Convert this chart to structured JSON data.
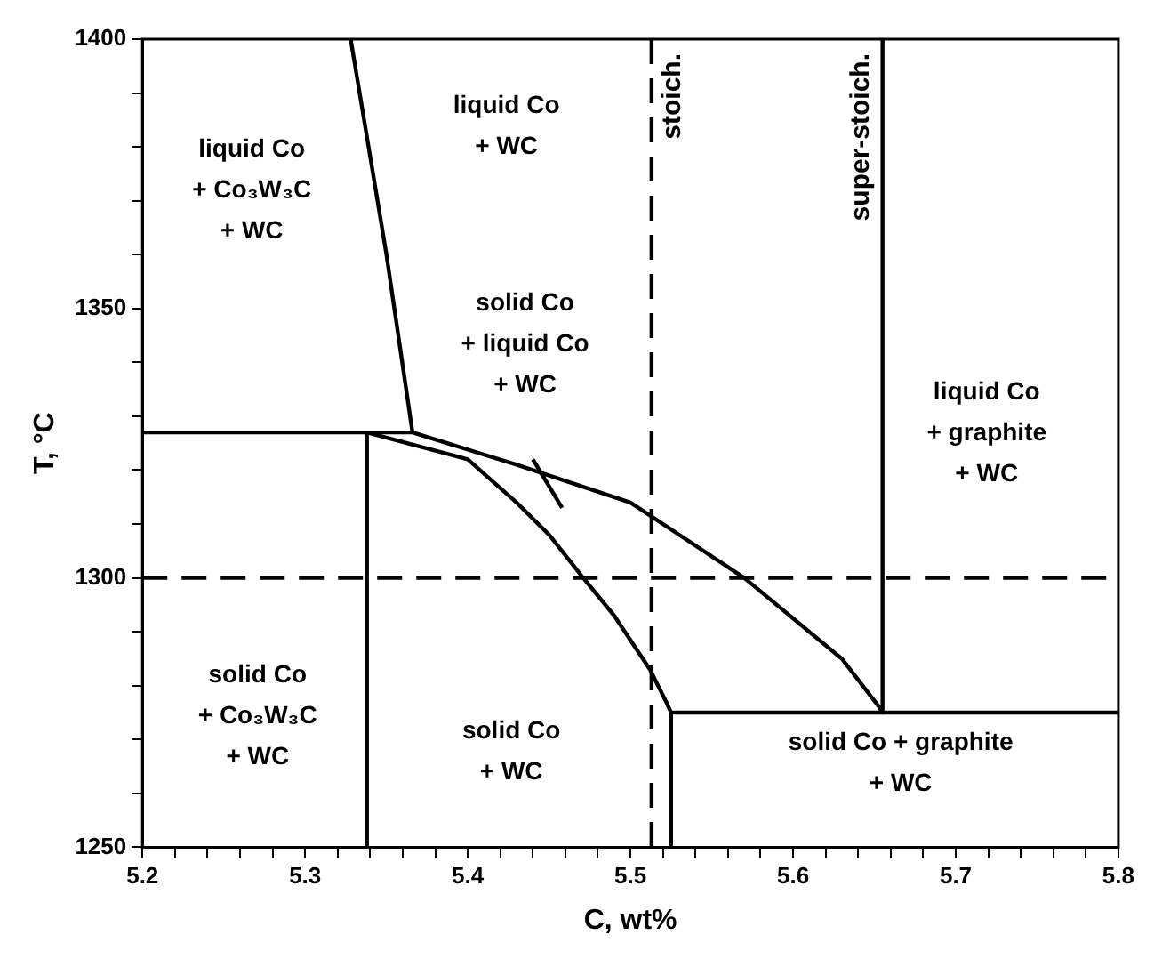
{
  "chart_data": {
    "type": "line",
    "xlabel": "C, wt%",
    "ylabel": "T, °C",
    "xlim": [
      5.2,
      5.8
    ],
    "ylim": [
      1250,
      1400
    ],
    "xticks": [
      5.2,
      {
        "value": 5.22,
        "label": null
      },
      {
        "value": 5.24,
        "label": null
      },
      {
        "value": 5.26,
        "label": null
      },
      {
        "value": 5.28,
        "label": null
      },
      5.3,
      {
        "value": 5.32,
        "label": null
      },
      {
        "value": 5.34,
        "label": null
      },
      {
        "value": 5.36,
        "label": null
      },
      {
        "value": 5.38,
        "label": null
      },
      5.4,
      {
        "value": 5.42,
        "label": null
      },
      {
        "value": 5.44,
        "label": null
      },
      {
        "value": 5.46,
        "label": null
      },
      {
        "value": 5.48,
        "label": null
      },
      5.5,
      {
        "value": 5.52,
        "label": null
      },
      {
        "value": 5.54,
        "label": null
      },
      {
        "value": 5.56,
        "label": null
      },
      {
        "value": 5.58,
        "label": null
      },
      5.6,
      {
        "value": 5.62,
        "label": null
      },
      {
        "value": 5.64,
        "label": null
      },
      {
        "value": 5.66,
        "label": null
      },
      {
        "value": 5.68,
        "label": null
      },
      5.7,
      {
        "value": 5.72,
        "label": null
      },
      {
        "value": 5.74,
        "label": null
      },
      {
        "value": 5.76,
        "label": null
      },
      {
        "value": 5.78,
        "label": null
      },
      5.8
    ],
    "yticks": [
      1250,
      {
        "value": 1260,
        "label": null
      },
      {
        "value": 1270,
        "label": null
      },
      {
        "value": 1280,
        "label": null
      },
      {
        "value": 1290,
        "label": null
      },
      1300,
      {
        "value": 1310,
        "label": null
      },
      {
        "value": 1320,
        "label": null
      },
      {
        "value": 1330,
        "label": null
      },
      {
        "value": 1340,
        "label": null
      },
      1350,
      {
        "value": 1360,
        "label": null
      },
      {
        "value": 1370,
        "label": null
      },
      {
        "value": 1380,
        "label": null
      },
      {
        "value": 1390,
        "label": null
      },
      1400
    ],
    "grid": false,
    "legend": false,
    "marker": "none",
    "line_style": "solid",
    "series": [
      {
        "name": "super-stoich.",
        "color": "#000000",
        "x": [
          5.2,
          5.366,
          5.43,
          5.5,
          5.57,
          5.63,
          5.653,
          5.655,
          5.655
        ],
        "values": [
          1327,
          1327,
          1321,
          1314,
          1300,
          1285,
          1276,
          1275,
          1400
        ]
      },
      {
        "color": "#000000",
        "x": [
          5.328,
          5.35,
          5.366
        ],
        "values": [
          1400,
          1360,
          1327
        ]
      },
      {
        "color": "#000000",
        "x": [
          5.338,
          5.338,
          5.4,
          5.43,
          5.45,
          5.471,
          5.49,
          5.512,
          5.522,
          5.525,
          5.8
        ],
        "values": [
          1250,
          1327,
          1322,
          1314,
          1308,
          1300,
          1293,
          1283,
          1277,
          1275,
          1275
        ]
      },
      {
        "color": "#000000",
        "x": [
          5.525,
          5.525
        ],
        "values": [
          1275,
          1250
        ]
      },
      {
        "color": "#000000",
        "x": [
          5.44,
          5.458
        ],
        "values": [
          1322,
          1313
        ]
      }
    ],
    "ref_lines": [
      {
        "axis": "x",
        "value": 5.513,
        "label": "stoich.",
        "line_style": "dashed",
        "color": "#000000"
      },
      {
        "axis": "y",
        "value": 1300,
        "line_style": "dashed",
        "color": "#000000"
      }
    ],
    "annotations": [
      "liquid Co\n+ Co₃W₃C\n+ WC",
      "liquid Co\n+ WC",
      "solid Co\n+ liquid Co\n+ WC",
      "liquid Co\n+ graphite\n+ WC",
      "solid Co\n+ Co₃W₃C\n+ WC",
      "solid Co\n+ WC",
      "solid Co + graphite\n+ WC"
    ]
  }
}
